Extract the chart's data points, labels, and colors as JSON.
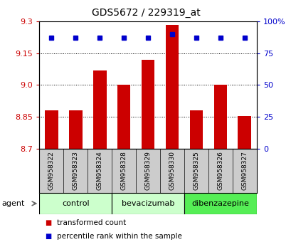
{
  "title": "GDS5672 / 229319_at",
  "samples": [
    "GSM958322",
    "GSM958323",
    "GSM958324",
    "GSM958328",
    "GSM958329",
    "GSM958330",
    "GSM958325",
    "GSM958326",
    "GSM958327"
  ],
  "bar_values": [
    8.88,
    8.88,
    9.07,
    9.0,
    9.12,
    9.285,
    8.88,
    9.0,
    8.855
  ],
  "percentile_values": [
    87,
    87,
    87,
    87,
    87,
    90,
    87,
    87,
    87
  ],
  "ylim_left": [
    8.7,
    9.3
  ],
  "yticks_left": [
    8.7,
    8.85,
    9.0,
    9.15,
    9.3
  ],
  "yticks_right": [
    0,
    25,
    50,
    75,
    100
  ],
  "bar_color": "#cc0000",
  "percentile_color": "#0000cc",
  "bar_bottom": 8.7,
  "bar_width": 0.55,
  "groups": [
    {
      "label": "control",
      "samples": [
        0,
        1,
        2
      ],
      "color": "#ccffcc"
    },
    {
      "label": "bevacizumab",
      "samples": [
        3,
        4,
        5
      ],
      "color": "#ccffcc"
    },
    {
      "label": "dibenzazepine",
      "samples": [
        6,
        7,
        8
      ],
      "color": "#55ee55"
    }
  ],
  "agent_label": "agent",
  "legend_bar_label": "transformed count",
  "legend_pct_label": "percentile rank within the sample",
  "title_fontsize": 10,
  "tick_fontsize": 8,
  "sample_fontsize": 6.5,
  "group_fontsize": 8,
  "legend_fontsize": 7.5,
  "sample_box_color": "#cccccc",
  "bg_color": "#ffffff"
}
